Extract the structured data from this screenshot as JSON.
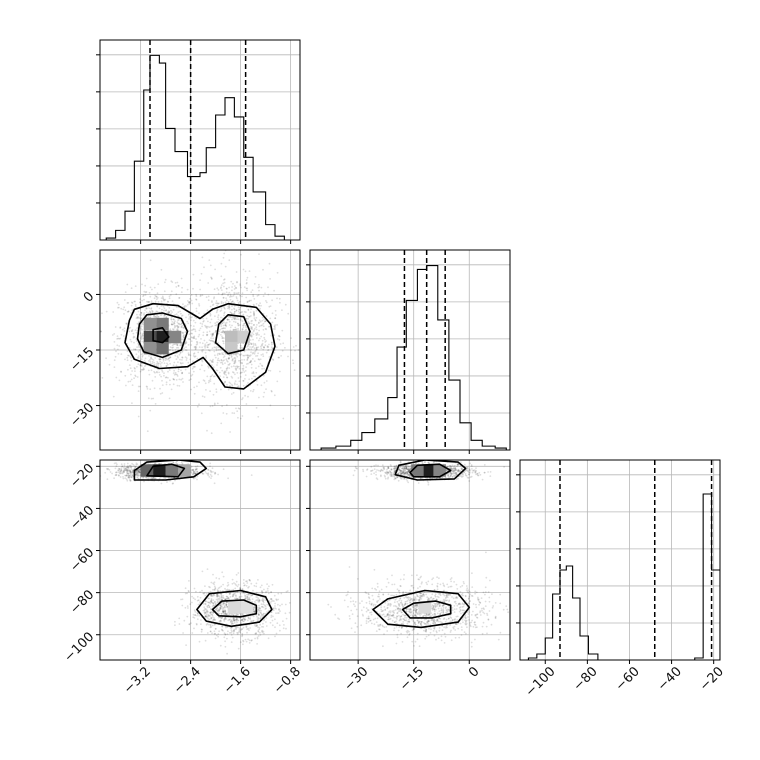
{
  "chart_data": {
    "type": "corner",
    "grid": true,
    "panels": [
      {
        "id": "hist-param1",
        "type": "histogram",
        "row": 0,
        "col": 0,
        "xlim": [
          -3.85,
          -0.65
        ],
        "ylim": [
          0,
          1.04
        ],
        "bins": [
          {
            "x0": -3.75,
            "x1": -3.6,
            "y": 0.01
          },
          {
            "x0": -3.6,
            "x1": -3.45,
            "y": 0.05
          },
          {
            "x0": -3.45,
            "x1": -3.3,
            "y": 0.15
          },
          {
            "x0": -3.3,
            "x1": -3.15,
            "y": 0.41
          },
          {
            "x0": -3.15,
            "x1": -3.05,
            "y": 0.78
          },
          {
            "x0": -3.05,
            "x1": -2.9,
            "y": 0.96
          },
          {
            "x0": -2.9,
            "x1": -2.8,
            "y": 0.92
          },
          {
            "x0": -2.8,
            "x1": -2.65,
            "y": 0.58
          },
          {
            "x0": -2.65,
            "x1": -2.45,
            "y": 0.46
          },
          {
            "x0": -2.45,
            "x1": -2.25,
            "y": 0.33
          },
          {
            "x0": -2.25,
            "x1": -2.15,
            "y": 0.35
          },
          {
            "x0": -2.15,
            "x1": -2.0,
            "y": 0.48
          },
          {
            "x0": -2.0,
            "x1": -1.85,
            "y": 0.65
          },
          {
            "x0": -1.85,
            "x1": -1.7,
            "y": 0.74
          },
          {
            "x0": -1.7,
            "x1": -1.55,
            "y": 0.64
          },
          {
            "x0": -1.55,
            "x1": -1.4,
            "y": 0.43
          },
          {
            "x0": -1.4,
            "x1": -1.2,
            "y": 0.25
          },
          {
            "x0": -1.2,
            "x1": -1.05,
            "y": 0.08
          },
          {
            "x0": -1.05,
            "x1": -0.9,
            "y": 0.02
          }
        ],
        "quantiles": [
          -3.05,
          -2.4,
          -1.52
        ]
      },
      {
        "id": "hist-param2",
        "type": "histogram",
        "row": 1,
        "col": 1,
        "xlim": [
          -43,
          11
        ],
        "ylim": [
          0,
          1.03
        ],
        "bins": [
          {
            "x0": -40,
            "x1": -36,
            "y": 0.01
          },
          {
            "x0": -36,
            "x1": -32,
            "y": 0.02
          },
          {
            "x0": -32,
            "x1": -29,
            "y": 0.05
          },
          {
            "x0": -29,
            "x1": -25.5,
            "y": 0.09
          },
          {
            "x0": -25.5,
            "x1": -22,
            "y": 0.16
          },
          {
            "x0": -22,
            "x1": -19.5,
            "y": 0.27
          },
          {
            "x0": -19.5,
            "x1": -17,
            "y": 0.53
          },
          {
            "x0": -17,
            "x1": -14,
            "y": 0.77
          },
          {
            "x0": -14,
            "x1": -11.5,
            "y": 0.93
          },
          {
            "x0": -11.5,
            "x1": -8.5,
            "y": 0.95
          },
          {
            "x0": -8.5,
            "x1": -5.5,
            "y": 0.67
          },
          {
            "x0": -5.5,
            "x1": -2.5,
            "y": 0.36
          },
          {
            "x0": -2.5,
            "x1": 0.5,
            "y": 0.14
          },
          {
            "x0": 0.5,
            "x1": 3.5,
            "y": 0.05
          },
          {
            "x0": 3.5,
            "x1": 7,
            "y": 0.02
          },
          {
            "x0": 7,
            "x1": 10,
            "y": 0.01
          }
        ],
        "quantiles": [
          -17.5,
          -11.5,
          -6.5
        ]
      },
      {
        "id": "hist-param3",
        "type": "histogram",
        "row": 2,
        "col": 2,
        "xlim": [
          -112,
          -17
        ],
        "ylim": [
          0,
          1.0
        ],
        "bins": [
          {
            "x0": -108,
            "x1": -104,
            "y": 0.01
          },
          {
            "x0": -104,
            "x1": -100,
            "y": 0.03
          },
          {
            "x0": -100,
            "x1": -96.5,
            "y": 0.11
          },
          {
            "x0": -96.5,
            "x1": -93,
            "y": 0.33
          },
          {
            "x0": -93,
            "x1": -90,
            "y": 0.45
          },
          {
            "x0": -90,
            "x1": -87,
            "y": 0.47
          },
          {
            "x0": -87,
            "x1": -83.5,
            "y": 0.31
          },
          {
            "x0": -83.5,
            "x1": -79.5,
            "y": 0.12
          },
          {
            "x0": -79.5,
            "x1": -75,
            "y": 0.03
          },
          {
            "x0": -75,
            "x1": -29,
            "y": 0.0
          },
          {
            "x0": -29,
            "x1": -25,
            "y": 0.01
          },
          {
            "x0": -25,
            "x1": -21,
            "y": 0.83
          },
          {
            "x0": -21,
            "x1": -17,
            "y": 0.45
          }
        ],
        "quantiles": [
          -93,
          -48,
          -21
        ]
      },
      {
        "id": "scatter-p1-p2",
        "type": "scatter-density",
        "row": 1,
        "col": 0,
        "xlim": [
          -3.85,
          -0.65
        ],
        "ylim": [
          -42,
          12
        ],
        "clusters": [
          {
            "x": -2.9,
            "y": -11.5,
            "sx": 0.28,
            "sy": 5.5,
            "weight": 0.5
          },
          {
            "x": -1.7,
            "y": -11.5,
            "sx": 0.3,
            "sy": 7.5,
            "weight": 0.5
          }
        ],
        "contours": [
          [
            [
              -3.38,
              -7
            ],
            [
              -3.3,
              -4
            ],
            [
              -3.0,
              -2.5
            ],
            [
              -2.6,
              -3
            ],
            [
              -2.25,
              -6.5
            ],
            [
              -2.05,
              -4
            ],
            [
              -1.8,
              -2.5
            ],
            [
              -1.35,
              -3.5
            ],
            [
              -1.12,
              -8
            ],
            [
              -1.05,
              -14
            ],
            [
              -1.2,
              -21
            ],
            [
              -1.55,
              -25.5
            ],
            [
              -1.85,
              -25
            ],
            [
              -2.05,
              -20
            ],
            [
              -2.2,
              -17
            ],
            [
              -2.45,
              -19.5
            ],
            [
              -2.9,
              -20
            ],
            [
              -3.3,
              -17.5
            ],
            [
              -3.45,
              -13
            ],
            [
              -3.38,
              -7
            ]
          ],
          [
            [
              -3.22,
              -8
            ],
            [
              -3.1,
              -5.5
            ],
            [
              -2.85,
              -5
            ],
            [
              -2.55,
              -6.5
            ],
            [
              -2.45,
              -10
            ],
            [
              -2.55,
              -15
            ],
            [
              -2.85,
              -17
            ],
            [
              -3.15,
              -15.5
            ],
            [
              -3.25,
              -12
            ],
            [
              -3.22,
              -8
            ]
          ],
          [
            [
              -1.95,
              -8
            ],
            [
              -1.8,
              -5.5
            ],
            [
              -1.55,
              -6
            ],
            [
              -1.45,
              -10
            ],
            [
              -1.55,
              -15
            ],
            [
              -1.8,
              -16
            ],
            [
              -2.0,
              -13
            ],
            [
              -1.95,
              -8
            ]
          ],
          [
            [
              -3.0,
              -9.5
            ],
            [
              -2.85,
              -9
            ],
            [
              -2.75,
              -11.5
            ],
            [
              -2.85,
              -13
            ],
            [
              -3.0,
              -12.5
            ],
            [
              -3.0,
              -9.5
            ]
          ]
        ],
        "density_cells": [
          {
            "x": -3.05,
            "y": -8,
            "d": 0.45
          },
          {
            "x": -2.85,
            "y": -8,
            "d": 0.55
          },
          {
            "x": -3.05,
            "y": -11.5,
            "d": 0.75
          },
          {
            "x": -2.85,
            "y": -11.5,
            "d": 0.95
          },
          {
            "x": -2.65,
            "y": -11.5,
            "d": 0.5
          },
          {
            "x": -2.85,
            "y": -14.5,
            "d": 0.6
          },
          {
            "x": -3.05,
            "y": -14.5,
            "d": 0.45
          },
          {
            "x": -1.75,
            "y": -11.5,
            "d": 0.25
          },
          {
            "x": -1.75,
            "y": -14.5,
            "d": 0.2
          },
          {
            "x": -1.55,
            "y": -11.5,
            "d": 0.18
          }
        ]
      },
      {
        "id": "scatter-p1-p3",
        "type": "scatter-density",
        "row": 2,
        "col": 0,
        "xlim": [
          -3.85,
          -0.65
        ],
        "ylim": [
          -112,
          -17
        ],
        "clusters": [
          {
            "x": -2.9,
            "y": -22.5,
            "sx": 0.3,
            "sy": 1.6,
            "weight": 0.5
          },
          {
            "x": -1.7,
            "y": -88,
            "sx": 0.3,
            "sy": 5.5,
            "weight": 0.5
          }
        ],
        "contours": [
          [
            [
              -3.3,
              -26.5
            ],
            [
              -3.3,
              -22
            ],
            [
              -3.1,
              -18
            ],
            [
              -2.6,
              -17
            ],
            [
              -2.25,
              -18
            ],
            [
              -2.15,
              -21
            ],
            [
              -2.35,
              -25
            ],
            [
              -2.8,
              -26.5
            ],
            [
              -3.3,
              -26.5
            ]
          ],
          [
            [
              -3.1,
              -24.5
            ],
            [
              -3.0,
              -20
            ],
            [
              -2.7,
              -19
            ],
            [
              -2.5,
              -21
            ],
            [
              -2.6,
              -25
            ],
            [
              -3.1,
              -24.5
            ]
          ],
          [
            [
              -2.3,
              -88
            ],
            [
              -2.1,
              -80.5
            ],
            [
              -1.6,
              -79
            ],
            [
              -1.2,
              -82
            ],
            [
              -1.1,
              -88
            ],
            [
              -1.3,
              -94
            ],
            [
              -1.75,
              -96
            ],
            [
              -2.15,
              -93.5
            ],
            [
              -2.3,
              -88
            ]
          ],
          [
            [
              -2.05,
              -88
            ],
            [
              -1.9,
              -84
            ],
            [
              -1.55,
              -83.5
            ],
            [
              -1.35,
              -86
            ],
            [
              -1.35,
              -90
            ],
            [
              -1.6,
              -91.5
            ],
            [
              -1.95,
              -91
            ],
            [
              -2.05,
              -88
            ]
          ]
        ],
        "density_cells": [
          {
            "x": -2.9,
            "y": -22,
            "d": 0.95
          },
          {
            "x": -3.1,
            "y": -22,
            "d": 0.65
          },
          {
            "x": -2.7,
            "y": -22,
            "d": 0.55
          },
          {
            "x": -2.5,
            "y": -22,
            "d": 0.35
          },
          {
            "x": -1.7,
            "y": -87,
            "d": 0.12
          },
          {
            "x": -1.5,
            "y": -87,
            "d": 0.1
          }
        ]
      },
      {
        "id": "scatter-p2-p3",
        "type": "scatter-density",
        "row": 2,
        "col": 1,
        "xlim": [
          -43,
          11
        ],
        "ylim": [
          -112,
          -17
        ],
        "clusters": [
          {
            "x": -11.5,
            "y": -22.5,
            "sx": 5.5,
            "sy": 1.6,
            "weight": 0.5
          },
          {
            "x": -12,
            "y": -88,
            "sx": 7.5,
            "sy": 5.5,
            "weight": 0.5
          }
        ],
        "contours": [
          [
            [
              -20,
              -24
            ],
            [
              -19,
              -19.5
            ],
            [
              -12,
              -17
            ],
            [
              -3,
              -18
            ],
            [
              -1,
              -21
            ],
            [
              -4,
              -26
            ],
            [
              -14,
              -26.5
            ],
            [
              -20,
              -24
            ]
          ],
          [
            [
              -16,
              -23
            ],
            [
              -14,
              -19.5
            ],
            [
              -8,
              -19
            ],
            [
              -5,
              -22
            ],
            [
              -8,
              -25
            ],
            [
              -15,
              -25
            ],
            [
              -16,
              -23
            ]
          ],
          [
            [
              -26,
              -88
            ],
            [
              -22,
              -83
            ],
            [
              -12,
              -79
            ],
            [
              -3,
              -80.5
            ],
            [
              0,
              -87
            ],
            [
              -3,
              -94
            ],
            [
              -13,
              -96.5
            ],
            [
              -22,
              -95
            ],
            [
              -26,
              -88
            ]
          ],
          [
            [
              -18,
              -88
            ],
            [
              -15,
              -85
            ],
            [
              -9,
              -84
            ],
            [
              -5,
              -86
            ],
            [
              -5,
              -90
            ],
            [
              -10,
              -92
            ],
            [
              -16,
              -92
            ],
            [
              -18,
              -88
            ]
          ]
        ],
        "density_cells": [
          {
            "x": -11,
            "y": -22,
            "d": 0.95
          },
          {
            "x": -14,
            "y": -22,
            "d": 0.55
          },
          {
            "x": -8,
            "y": -22,
            "d": 0.5
          },
          {
            "x": -12,
            "y": -87,
            "d": 0.12
          }
        ]
      }
    ],
    "axes": {
      "x_ticks": [
        {
          "col": 0,
          "values": [
            -3.2,
            -2.4,
            -1.6,
            -0.8
          ],
          "labels": [
            "−3.2",
            "−2.4",
            "−1.6",
            "−0.8"
          ]
        },
        {
          "col": 1,
          "values": [
            -30,
            -15,
            0
          ],
          "labels": [
            "−30",
            "−15",
            "0"
          ]
        },
        {
          "col": 2,
          "values": [
            -100,
            -80,
            -60,
            -40,
            -20
          ],
          "labels": [
            "−100",
            "−80",
            "−60",
            "−40",
            "−20"
          ]
        }
      ],
      "y_ticks": [
        {
          "row": 1,
          "values": [
            0,
            -15,
            -30
          ],
          "labels": [
            "0",
            "−15",
            "−30"
          ]
        },
        {
          "row": 2,
          "values": [
            -20,
            -40,
            -60,
            -80,
            -100
          ],
          "labels": [
            "−20",
            "−40",
            "−60",
            "−80",
            "−100"
          ]
        }
      ]
    }
  }
}
